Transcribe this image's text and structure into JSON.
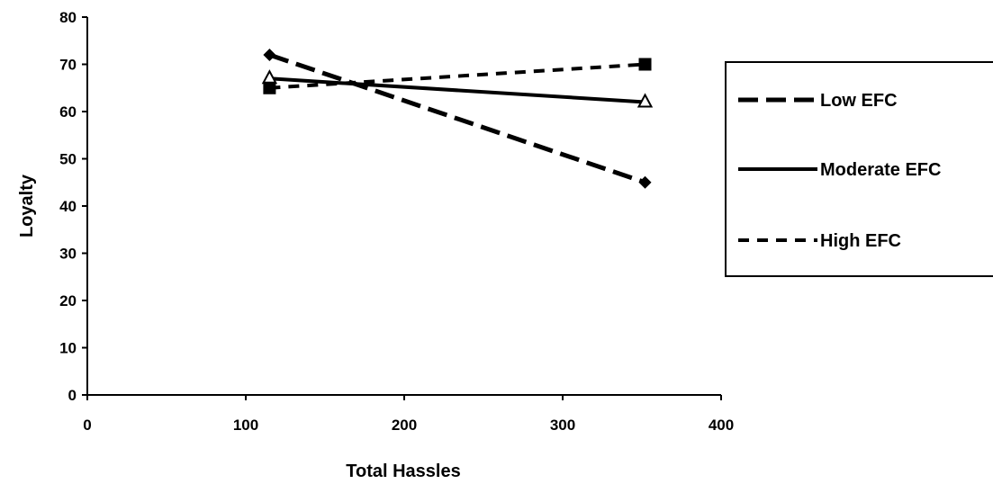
{
  "chart_data": {
    "type": "line",
    "xlabel": "Total Hassles",
    "ylabel": "Loyalty",
    "xlim": [
      0,
      400
    ],
    "ylim": [
      0,
      80
    ],
    "xticks": [
      0,
      100,
      200,
      300,
      400
    ],
    "yticks": [
      0,
      10,
      20,
      30,
      40,
      50,
      60,
      70,
      80
    ],
    "grid": false,
    "legend_position": "right",
    "series": [
      {
        "name": "Low EFC",
        "x": [
          115,
          352
        ],
        "y": [
          72,
          45
        ],
        "marker": "diamond",
        "line_style": "long-dash",
        "color": "#000000"
      },
      {
        "name": "Moderate EFC",
        "x": [
          115,
          352
        ],
        "y": [
          67,
          62
        ],
        "marker": "triangle",
        "line_style": "solid",
        "color": "#000000"
      },
      {
        "name": "High EFC",
        "x": [
          115,
          352
        ],
        "y": [
          65,
          70
        ],
        "marker": "square",
        "line_style": "short-dash",
        "color": "#000000"
      }
    ]
  }
}
